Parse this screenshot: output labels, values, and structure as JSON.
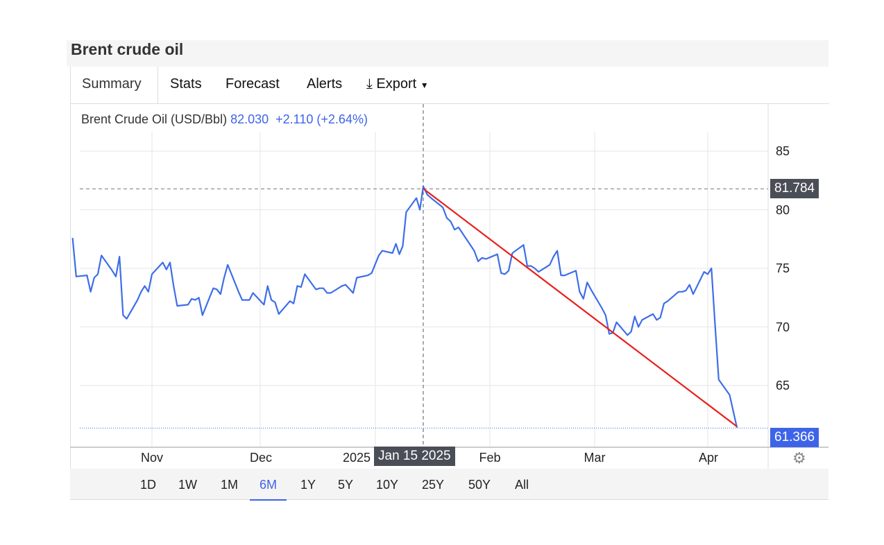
{
  "header": {
    "title": "Brent crude oil"
  },
  "tabs": [
    {
      "label": "Summary",
      "active": true
    },
    {
      "label": "Stats"
    },
    {
      "label": "Forecast"
    },
    {
      "label": "Alerts"
    },
    {
      "label": "Export",
      "icon": "download-icon"
    }
  ],
  "legend": {
    "name": "Brent Crude Oil (USD/Bbl)",
    "value": "82.030",
    "change": "+2.110",
    "change_pct": "(+2.64%)"
  },
  "crosshair": {
    "date_label": "Jan 15 2025",
    "price_label": "81.784"
  },
  "last_price_label": "61.366",
  "ranges": [
    {
      "label": "1D"
    },
    {
      "label": "1W"
    },
    {
      "label": "1M"
    },
    {
      "label": "6M",
      "active": true
    },
    {
      "label": "1Y"
    },
    {
      "label": "5Y"
    },
    {
      "label": "10Y"
    },
    {
      "label": "25Y"
    },
    {
      "label": "50Y"
    },
    {
      "label": "All"
    }
  ],
  "colors": {
    "line": "#3d6ee8",
    "trend": "#e8201c",
    "accent": "#3d64e8",
    "badge_dark": "#4a4e57"
  },
  "chart_data": {
    "type": "line",
    "ylim": [
      60.5,
      88
    ],
    "yticks": [
      "85",
      "80",
      "75",
      "70",
      "65"
    ],
    "xticks": [
      "Nov",
      "Dec",
      "2025",
      "Feb",
      "Mar",
      "Apr"
    ],
    "grid": true,
    "series": [
      {
        "name": "Brent Crude Oil (USD/Bbl)",
        "points": [
          [
            "2024-10-10",
            77.6
          ],
          [
            "2024-10-11",
            74.3
          ],
          [
            "2024-10-14",
            74.4
          ],
          [
            "2024-10-15",
            73.0
          ],
          [
            "2024-10-16",
            74.2
          ],
          [
            "2024-10-17",
            74.5
          ],
          [
            "2024-10-18",
            76.1
          ],
          [
            "2024-10-21",
            74.8
          ],
          [
            "2024-10-22",
            74.3
          ],
          [
            "2024-10-23",
            76.0
          ],
          [
            "2024-10-24",
            71.0
          ],
          [
            "2024-10-25",
            70.7
          ],
          [
            "2024-10-28",
            72.3
          ],
          [
            "2024-10-29",
            73.0
          ],
          [
            "2024-10-30",
            73.5
          ],
          [
            "2024-10-31",
            73.0
          ],
          [
            "2024-11-01",
            74.5
          ],
          [
            "2024-11-04",
            75.5
          ],
          [
            "2024-11-05",
            74.9
          ],
          [
            "2024-11-06",
            75.5
          ],
          [
            "2024-11-07",
            73.5
          ],
          [
            "2024-11-08",
            71.8
          ],
          [
            "2024-11-11",
            71.9
          ],
          [
            "2024-11-12",
            72.4
          ],
          [
            "2024-11-13",
            72.3
          ],
          [
            "2024-11-14",
            72.5
          ],
          [
            "2024-11-15",
            71.0
          ],
          [
            "2024-11-18",
            73.3
          ],
          [
            "2024-11-19",
            73.2
          ],
          [
            "2024-11-20",
            72.8
          ],
          [
            "2024-11-21",
            74.2
          ],
          [
            "2024-11-22",
            75.3
          ],
          [
            "2024-11-25",
            73.0
          ],
          [
            "2024-11-26",
            72.3
          ],
          [
            "2024-11-27",
            72.3
          ],
          [
            "2024-11-28",
            72.3
          ],
          [
            "2024-11-29",
            72.9
          ],
          [
            "2024-12-02",
            71.9
          ],
          [
            "2024-12-03",
            73.5
          ],
          [
            "2024-12-04",
            72.3
          ],
          [
            "2024-12-05",
            72.1
          ],
          [
            "2024-12-06",
            71.1
          ],
          [
            "2024-12-09",
            72.2
          ],
          [
            "2024-12-10",
            72.0
          ],
          [
            "2024-12-11",
            73.5
          ],
          [
            "2024-12-12",
            73.4
          ],
          [
            "2024-12-13",
            74.5
          ],
          [
            "2024-12-16",
            73.2
          ],
          [
            "2024-12-17",
            73.3
          ],
          [
            "2024-12-18",
            73.3
          ],
          [
            "2024-12-19",
            72.9
          ],
          [
            "2024-12-20",
            72.9
          ],
          [
            "2024-12-23",
            73.5
          ],
          [
            "2024-12-24",
            73.6
          ],
          [
            "2024-12-26",
            72.9
          ],
          [
            "2024-12-27",
            74.2
          ],
          [
            "2024-12-30",
            74.4
          ],
          [
            "2024-12-31",
            74.6
          ],
          [
            "2025-01-02",
            76.1
          ],
          [
            "2025-01-03",
            76.5
          ],
          [
            "2025-01-06",
            76.3
          ],
          [
            "2025-01-07",
            77.1
          ],
          [
            "2025-01-08",
            76.2
          ],
          [
            "2025-01-09",
            76.9
          ],
          [
            "2025-01-10",
            79.8
          ],
          [
            "2025-01-13",
            81.0
          ],
          [
            "2025-01-14",
            80.0
          ],
          [
            "2025-01-15",
            82.0
          ],
          [
            "2025-01-16",
            81.3
          ],
          [
            "2025-01-17",
            81.0
          ],
          [
            "2025-01-20",
            80.2
          ],
          [
            "2025-01-21",
            79.3
          ],
          [
            "2025-01-22",
            79.0
          ],
          [
            "2025-01-23",
            78.3
          ],
          [
            "2025-01-24",
            78.5
          ],
          [
            "2025-01-27",
            77.0
          ],
          [
            "2025-01-28",
            76.5
          ],
          [
            "2025-01-29",
            75.6
          ],
          [
            "2025-01-30",
            75.9
          ],
          [
            "2025-01-31",
            75.8
          ],
          [
            "2025-02-03",
            76.2
          ],
          [
            "2025-02-04",
            74.6
          ],
          [
            "2025-02-05",
            74.5
          ],
          [
            "2025-02-06",
            74.8
          ],
          [
            "2025-02-07",
            76.3
          ],
          [
            "2025-02-10",
            77.0
          ],
          [
            "2025-02-11",
            75.2
          ],
          [
            "2025-02-12",
            75.2
          ],
          [
            "2025-02-13",
            75.0
          ],
          [
            "2025-02-14",
            74.7
          ],
          [
            "2025-02-17",
            75.3
          ],
          [
            "2025-02-18",
            76.0
          ],
          [
            "2025-02-19",
            76.5
          ],
          [
            "2025-02-20",
            74.4
          ],
          [
            "2025-02-21",
            74.4
          ],
          [
            "2025-02-24",
            74.8
          ],
          [
            "2025-02-25",
            73.0
          ],
          [
            "2025-02-26",
            72.4
          ],
          [
            "2025-02-27",
            73.8
          ],
          [
            "2025-02-28",
            73.2
          ],
          [
            "2025-03-03",
            71.6
          ],
          [
            "2025-03-04",
            71.0
          ],
          [
            "2025-03-05",
            69.4
          ],
          [
            "2025-03-06",
            69.5
          ],
          [
            "2025-03-07",
            70.4
          ],
          [
            "2025-03-10",
            69.3
          ],
          [
            "2025-03-11",
            69.6
          ],
          [
            "2025-03-12",
            70.9
          ],
          [
            "2025-03-13",
            70.0
          ],
          [
            "2025-03-14",
            70.6
          ],
          [
            "2025-03-17",
            71.1
          ],
          [
            "2025-03-18",
            70.6
          ],
          [
            "2025-03-19",
            70.8
          ],
          [
            "2025-03-20",
            72.0
          ],
          [
            "2025-03-21",
            72.2
          ],
          [
            "2025-03-24",
            73.0
          ],
          [
            "2025-03-25",
            73.0
          ],
          [
            "2025-03-26",
            73.1
          ],
          [
            "2025-03-27",
            73.6
          ],
          [
            "2025-03-28",
            72.8
          ],
          [
            "2025-03-31",
            74.7
          ],
          [
            "2025-04-01",
            74.5
          ],
          [
            "2025-04-02",
            75.0
          ],
          [
            "2025-04-03",
            70.2
          ],
          [
            "2025-04-04",
            65.5
          ],
          [
            "2025-04-07",
            64.2
          ],
          [
            "2025-04-08",
            62.8
          ],
          [
            "2025-04-09",
            61.4
          ]
        ]
      }
    ],
    "trendline": {
      "from": [
        "2025-01-15",
        81.8
      ],
      "to": [
        "2025-04-09",
        61.5
      ]
    },
    "crosshair": {
      "date": "2025-01-15",
      "value": 81.784
    },
    "last_value": 61.366
  }
}
